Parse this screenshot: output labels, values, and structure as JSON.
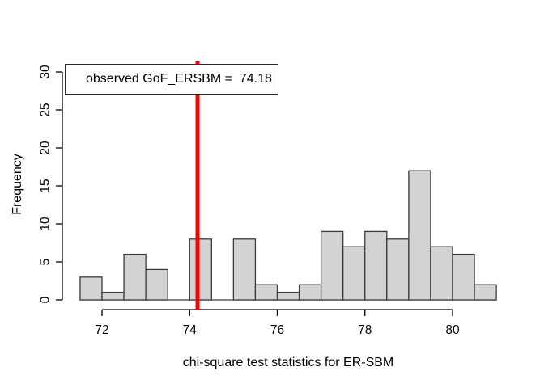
{
  "figure": {
    "background": "#FFFFFF",
    "text_color": "#000000"
  },
  "chart_data": {
    "type": "bar",
    "subtype": "histogram",
    "title": "",
    "xlabel": "chi-square test statistics for ER-SBM",
    "ylabel": "Frequency",
    "bin_start": 71.5,
    "bin_width": 0.5,
    "counts": [
      3,
      1,
      6,
      4,
      0,
      8,
      0,
      8,
      2,
      1,
      2,
      9,
      7,
      9,
      8,
      17,
      7,
      6,
      2
    ],
    "x_ticks": [
      72,
      74,
      76,
      78,
      80
    ],
    "y_ticks": [
      0,
      5,
      10,
      15,
      20,
      25,
      30
    ],
    "xlim": [
      71.5,
      81
    ],
    "ylim": [
      0,
      30
    ],
    "grid": false,
    "legend_position": "topleft",
    "bar_fill": "#D3D3D3",
    "bar_border": "#3A3A3A",
    "axis_color": "#000000",
    "observed_line": {
      "value": 74.18,
      "color": "#FF0000",
      "width": 5
    },
    "legend": {
      "label": "observed GoF_ERSBM =  74.18",
      "bg": "#FFFFFF",
      "border": "#2A2A2A"
    }
  }
}
